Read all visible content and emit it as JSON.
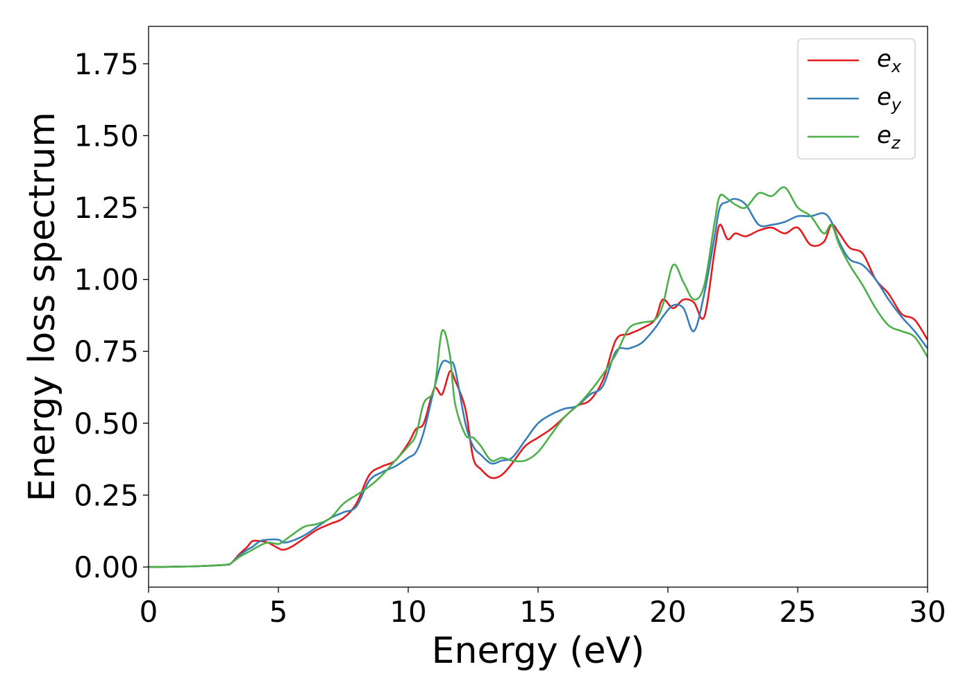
{
  "chart_data": {
    "type": "line",
    "title": "",
    "xlabel": "Energy (eV)",
    "ylabel": "Energy loss spectrum",
    "xlim": [
      0,
      30
    ],
    "ylim": [
      -0.07,
      1.88
    ],
    "xticks": [
      0,
      5,
      10,
      15,
      20,
      25,
      30
    ],
    "xtick_labels": [
      "0",
      "5",
      "10",
      "15",
      "20",
      "25",
      "30"
    ],
    "yticks": [
      0,
      0.25,
      0.5,
      0.75,
      1.0,
      1.25,
      1.5,
      1.75
    ],
    "ytick_labels": [
      "0.00",
      "0.25",
      "0.50",
      "0.75",
      "1.00",
      "1.25",
      "1.50",
      "1.75"
    ],
    "grid": false,
    "legend_position": "top-right",
    "series": [
      {
        "name": "e_x",
        "base": "e",
        "sub": "x",
        "color": "#e41a1c",
        "x": [
          0,
          1,
          2,
          3,
          3.2,
          3.5,
          3.8,
          4.0,
          4.3,
          4.6,
          5.0,
          5.2,
          5.5,
          6.0,
          6.5,
          7.0,
          7.5,
          8.0,
          8.5,
          9.0,
          9.5,
          10.0,
          10.3,
          10.6,
          11.0,
          11.3,
          11.6,
          11.8,
          12.2,
          12.5,
          12.8,
          13.2,
          13.6,
          14.0,
          14.5,
          15.0,
          15.5,
          16.0,
          16.5,
          17.0,
          17.5,
          18.0,
          18.5,
          19.0,
          19.5,
          19.8,
          20.2,
          20.6,
          21.0,
          21.4,
          21.8,
          22.0,
          22.3,
          22.6,
          23.0,
          23.5,
          24.0,
          24.5,
          25.0,
          25.5,
          26.0,
          26.3,
          26.6,
          27.0,
          27.5,
          28.0,
          28.5,
          29.0,
          29.5,
          30.0
        ],
        "y": [
          0,
          0.001,
          0.003,
          0.008,
          0.015,
          0.045,
          0.07,
          0.09,
          0.09,
          0.085,
          0.065,
          0.06,
          0.07,
          0.1,
          0.13,
          0.15,
          0.17,
          0.22,
          0.32,
          0.35,
          0.37,
          0.43,
          0.48,
          0.5,
          0.62,
          0.6,
          0.68,
          0.65,
          0.55,
          0.38,
          0.34,
          0.31,
          0.32,
          0.36,
          0.42,
          0.45,
          0.48,
          0.52,
          0.56,
          0.58,
          0.65,
          0.79,
          0.81,
          0.83,
          0.86,
          0.93,
          0.9,
          0.93,
          0.92,
          0.87,
          1.1,
          1.19,
          1.14,
          1.16,
          1.15,
          1.17,
          1.18,
          1.16,
          1.18,
          1.12,
          1.13,
          1.19,
          1.16,
          1.11,
          1.09,
          1.0,
          0.95,
          0.88,
          0.86,
          0.79
        ]
      },
      {
        "name": "e_y",
        "base": "e",
        "sub": "y",
        "color": "#377eb8",
        "x": [
          0,
          1,
          2,
          3,
          3.2,
          3.5,
          3.8,
          4.0,
          4.3,
          4.6,
          5.0,
          5.2,
          5.5,
          6.0,
          6.5,
          7.0,
          7.5,
          8.0,
          8.5,
          9.0,
          9.5,
          10.0,
          10.3,
          10.6,
          11.0,
          11.3,
          11.6,
          11.8,
          12.2,
          12.5,
          12.8,
          13.2,
          13.6,
          14.0,
          14.5,
          15.0,
          15.5,
          16.0,
          16.5,
          17.0,
          17.5,
          18.0,
          18.5,
          19.0,
          19.5,
          19.8,
          20.2,
          20.6,
          21.0,
          21.4,
          21.8,
          22.0,
          22.3,
          22.6,
          23.0,
          23.5,
          24.0,
          24.5,
          25.0,
          25.5,
          26.0,
          26.3,
          26.6,
          27.0,
          27.5,
          28.0,
          28.5,
          29.0,
          29.5,
          30.0
        ],
        "y": [
          0,
          0.001,
          0.003,
          0.008,
          0.015,
          0.04,
          0.06,
          0.07,
          0.09,
          0.095,
          0.095,
          0.085,
          0.09,
          0.11,
          0.14,
          0.17,
          0.19,
          0.21,
          0.3,
          0.33,
          0.35,
          0.38,
          0.4,
          0.47,
          0.62,
          0.71,
          0.71,
          0.69,
          0.5,
          0.42,
          0.39,
          0.36,
          0.37,
          0.38,
          0.44,
          0.5,
          0.53,
          0.55,
          0.56,
          0.6,
          0.63,
          0.75,
          0.76,
          0.78,
          0.83,
          0.87,
          0.91,
          0.9,
          0.82,
          0.95,
          1.15,
          1.25,
          1.27,
          1.28,
          1.26,
          1.19,
          1.19,
          1.2,
          1.22,
          1.22,
          1.23,
          1.2,
          1.13,
          1.07,
          1.05,
          1.0,
          0.93,
          0.87,
          0.82,
          0.76
        ]
      },
      {
        "name": "e_z",
        "base": "e",
        "sub": "z",
        "color": "#4daf4a",
        "x": [
          0,
          1,
          2,
          3,
          3.2,
          3.5,
          3.8,
          4.0,
          4.3,
          4.6,
          5.0,
          5.2,
          5.5,
          6.0,
          6.5,
          7.0,
          7.5,
          8.0,
          8.5,
          9.0,
          9.5,
          10.0,
          10.3,
          10.6,
          11.0,
          11.3,
          11.6,
          11.8,
          12.2,
          12.5,
          12.8,
          13.2,
          13.6,
          14.0,
          14.5,
          15.0,
          15.5,
          16.0,
          16.5,
          17.0,
          17.5,
          18.0,
          18.5,
          19.0,
          19.5,
          19.8,
          20.2,
          20.6,
          21.0,
          21.4,
          21.8,
          22.0,
          22.3,
          22.6,
          23.0,
          23.5,
          24.0,
          24.5,
          25.0,
          25.5,
          26.0,
          26.3,
          26.6,
          27.0,
          27.5,
          28.0,
          28.5,
          29.0,
          29.5,
          30.0
        ],
        "y": [
          0,
          0.001,
          0.003,
          0.008,
          0.015,
          0.035,
          0.05,
          0.06,
          0.075,
          0.085,
          0.08,
          0.09,
          0.11,
          0.14,
          0.15,
          0.17,
          0.22,
          0.25,
          0.28,
          0.32,
          0.37,
          0.42,
          0.46,
          0.57,
          0.62,
          0.82,
          0.74,
          0.57,
          0.46,
          0.45,
          0.42,
          0.37,
          0.38,
          0.37,
          0.37,
          0.4,
          0.46,
          0.52,
          0.56,
          0.61,
          0.67,
          0.74,
          0.83,
          0.85,
          0.86,
          0.91,
          1.05,
          0.99,
          0.93,
          0.98,
          1.2,
          1.29,
          1.28,
          1.26,
          1.25,
          1.3,
          1.29,
          1.32,
          1.25,
          1.22,
          1.16,
          1.19,
          1.12,
          1.05,
          0.98,
          0.9,
          0.84,
          0.82,
          0.8,
          0.73
        ]
      }
    ]
  }
}
